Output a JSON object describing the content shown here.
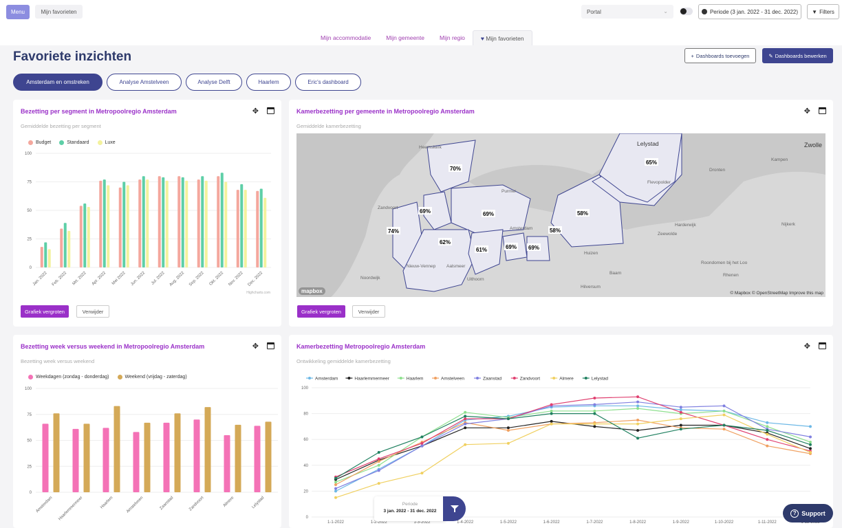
{
  "topbar": {
    "menu_label": "Menu",
    "favorites_label": "Mijn favorieten",
    "portal_value": "Portal",
    "period_label": "Periode (3 jan. 2022 - 31 dec. 2022)",
    "filters_label": "Filters"
  },
  "tabs": [
    {
      "label": "Mijn accommodatie"
    },
    {
      "label": "Mijn gemeente"
    },
    {
      "label": "Mijn regio"
    },
    {
      "label": "Mijn favorieten",
      "active": true
    }
  ],
  "page": {
    "title": "Favoriete inzichten",
    "add_dashboards": "Dashboards toevoegen",
    "edit_dashboards": "Dashboards bewerken"
  },
  "pills": [
    {
      "label": "Amsterdam en omstreken",
      "active": true
    },
    {
      "label": "Analyse Amstelveen"
    },
    {
      "label": "Analyse Delft"
    },
    {
      "label": "Haarlem"
    },
    {
      "label": "Eric's dashboard"
    }
  ],
  "cards": {
    "segment": {
      "title": "Bezetting per segment in Metropoolregio Amsterdam",
      "subtitle": "Gemiddelde bezetting per segment",
      "credit": "Highcharts.com",
      "enlarge": "Grafiek vergroten",
      "remove": "Verwijder"
    },
    "map": {
      "title": "Kamerbezetting per gemeente in Metropoolregio Amsterdam",
      "subtitle": "Gemiddelde kamerbezetting",
      "credit": "© Mapbox © OpenStreetMap Improve this map",
      "logo": "mapbox",
      "enlarge": "Grafiek vergroten",
      "remove": "Verwijder",
      "labels": [
        "70%",
        "65%",
        "69%",
        "69%",
        "58%",
        "74%",
        "62%",
        "58%",
        "61%",
        "69%",
        "69%"
      ],
      "places": [
        "Heemskerk",
        "Lelystad",
        "Zwolle",
        "Flevopolder",
        "Harderwijk",
        "Zeewolde",
        "Nijkerk",
        "Purmer",
        "Amsterdam",
        "Nieuw-Vennep",
        "Aalsmeer",
        "Uithoorn",
        "Huizen",
        "Hilversum",
        "Baarn",
        "Noordwijk",
        "Rhenen",
        "Kampen",
        "Dronten",
        "Zandvoort",
        "Roondomen bij het Loo"
      ]
    },
    "week": {
      "title": "Bezetting week versus weekend in Metropoolregio Amsterdam",
      "subtitle": "Bezetting week versus weekend"
    },
    "trend": {
      "title": "Kamerbezetting Metropoolregio Amsterdam",
      "subtitle": "Ontwikkeling gemiddelde kamerbezetting"
    }
  },
  "floating": {
    "period_label": "Periode",
    "period_value": "3 jan. 2022 - 31 dec. 2022",
    "support": "Support"
  },
  "colors": {
    "accent": "#3e4590",
    "title": "#9a30c8",
    "budget": "#f4a79d",
    "standaard": "#5ecfa7",
    "luxe": "#f3f29d",
    "weekdagen": "#f472b6",
    "weekend": "#d4a957"
  },
  "chart_data": [
    {
      "type": "bar",
      "title": "Bezetting per segment in Metropoolregio Amsterdam",
      "subtitle": "Gemiddelde bezetting per segment",
      "categories": [
        "Jan. 2022",
        "Feb. 2022",
        "Mrt. 2022",
        "Apr. 2022",
        "Mei 2022",
        "Jun. 2022",
        "Jul. 2022",
        "Aug. 2022",
        "Sep. 2022",
        "Okt. 2022",
        "Nov. 2022",
        "Dec. 2022"
      ],
      "series": [
        {
          "name": "Budget",
          "values": [
            18,
            34,
            54,
            76,
            70,
            77,
            80,
            80,
            77,
            80,
            68,
            67
          ]
        },
        {
          "name": "Standaard",
          "values": [
            22,
            39,
            56,
            77,
            75,
            80,
            79,
            79,
            80,
            83,
            73,
            69
          ]
        },
        {
          "name": "Luxe",
          "values": [
            16,
            32,
            53,
            72,
            72,
            77,
            76,
            76,
            76,
            75,
            68,
            61
          ]
        }
      ],
      "ylim": [
        0,
        100
      ],
      "yticks": [
        0,
        25,
        50,
        75,
        100
      ],
      "legend": "top-left"
    },
    {
      "type": "bar",
      "title": "Bezetting week versus weekend in Metropoolregio Amsterdam",
      "subtitle": "Bezetting week versus weekend",
      "categories": [
        "Amsterdam",
        "Haarlemmermeer",
        "Haarlem",
        "Amstelveen",
        "Zaanstad",
        "Zandvoort",
        "Almere",
        "Lelystad"
      ],
      "series": [
        {
          "name": "Weekdagen (zondag - donderdag)",
          "values": [
            66,
            61,
            62,
            58,
            67,
            70,
            55,
            64
          ]
        },
        {
          "name": "Weekend (vrijdag - zaterdag)",
          "values": [
            76,
            66,
            83,
            67,
            76,
            82,
            65,
            68
          ]
        }
      ],
      "ylim": [
        0,
        100
      ],
      "yticks": [
        0,
        25,
        50,
        75,
        100
      ],
      "legend": "top-left"
    },
    {
      "type": "line",
      "title": "Kamerbezetting Metropoolregio Amsterdam",
      "subtitle": "Ontwikkeling gemiddelde kamerbezetting",
      "x": [
        "1-1-2022",
        "1-2-2022",
        "1-3-2022",
        "1-4-2022",
        "1-5-2022",
        "1-6-2022",
        "1-7-2022",
        "1-8-2022",
        "1-9-2022",
        "1-10-2022",
        "1-11-2022",
        "1-12-2022"
      ],
      "series": [
        {
          "name": "Amsterdam",
          "values": [
            20,
            37,
            55,
            75,
            78,
            85,
            86,
            86,
            83,
            82,
            73,
            70
          ]
        },
        {
          "name": "Haarlemmermeer",
          "values": [
            29,
            44,
            55,
            69,
            69,
            74,
            70,
            67,
            71,
            71,
            65,
            53
          ]
        },
        {
          "name": "Haarlem",
          "values": [
            27,
            40,
            62,
            81,
            77,
            82,
            82,
            84,
            80,
            82,
            70,
            58
          ]
        },
        {
          "name": "Amstelveen",
          "values": [
            25,
            43,
            58,
            73,
            67,
            72,
            73,
            75,
            69,
            68,
            55,
            49
          ]
        },
        {
          "name": "Zaanstad",
          "values": [
            22,
            36,
            55,
            72,
            76,
            86,
            87,
            89,
            85,
            86,
            68,
            62
          ]
        },
        {
          "name": "Zandvoort",
          "values": [
            31,
            45,
            57,
            76,
            76,
            87,
            92,
            93,
            81,
            71,
            60,
            51
          ]
        },
        {
          "name": "Almere",
          "values": [
            15,
            26,
            34,
            56,
            57,
            72,
            72,
            72,
            76,
            79,
            64,
            50
          ]
        },
        {
          "name": "Lelystad",
          "values": [
            30,
            50,
            62,
            78,
            76,
            80,
            80,
            61,
            68,
            71,
            67,
            56
          ]
        }
      ],
      "ylim": [
        0,
        100
      ],
      "yticks": [
        0,
        20,
        40,
        60,
        80,
        100
      ],
      "legend": "top-left",
      "colors": [
        "#6cb8e6",
        "#222222",
        "#8ee08e",
        "#f0a060",
        "#8080e0",
        "#e04070",
        "#f0d060",
        "#208060"
      ]
    }
  ]
}
